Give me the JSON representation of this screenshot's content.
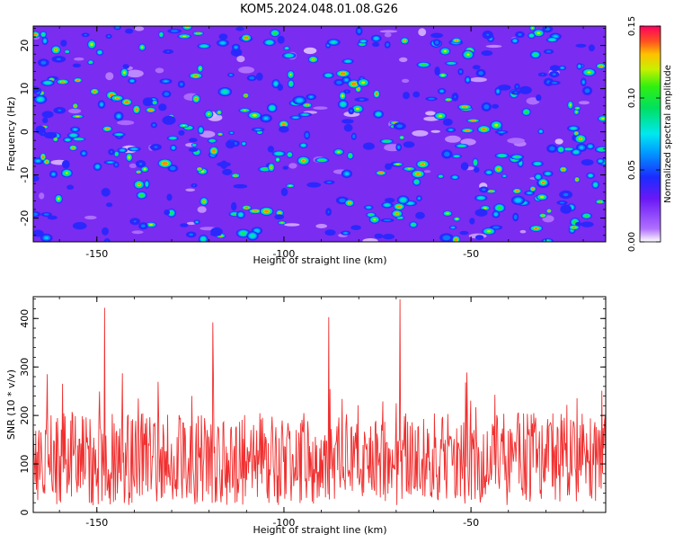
{
  "title": "KOM5.2024.048.01.08.G26",
  "chart_data": [
    {
      "type": "heatmap",
      "xlabel": "Height of straight line (km)",
      "ylabel": "Frequency (Hz)",
      "x_ticks": [
        "-150",
        "-100",
        "-50"
      ],
      "y_ticks": [
        "-20",
        "-10",
        "0",
        "10",
        "20"
      ],
      "xlim": [
        -167,
        -14
      ],
      "ylim": [
        -25.5,
        24.5
      ],
      "colorbar": {
        "label": "Normalized spectral amplitude",
        "ticks": [
          "0.00",
          "0.05",
          "0.10",
          "0.15"
        ],
        "range": [
          0,
          0.15
        ]
      }
    },
    {
      "type": "line",
      "xlabel": "Height of straight line (km)",
      "ylabel": "SNR (10 * v/v)",
      "x_ticks": [
        "-150",
        "-100",
        "-50"
      ],
      "y_ticks": [
        "0",
        "100",
        "200",
        "300",
        "400"
      ],
      "xlim": [
        -167,
        -14
      ],
      "ylim": [
        0,
        445
      ],
      "line_color": "#f03030",
      "peaks": [
        {
          "x": -148,
          "y": 422
        },
        {
          "x": -88,
          "y": 403
        },
        {
          "x": -69,
          "y": 440
        },
        {
          "x": -119,
          "y": 392
        }
      ]
    }
  ]
}
